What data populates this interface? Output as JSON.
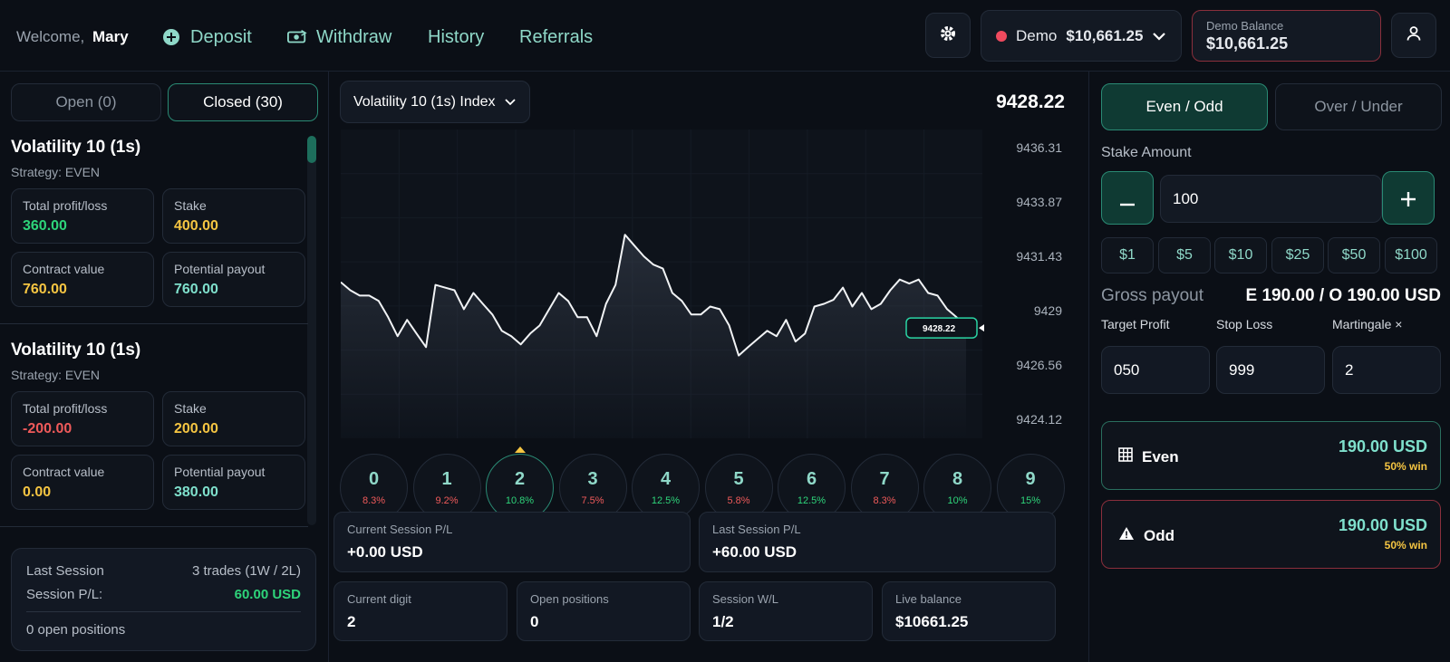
{
  "header": {
    "welcome_label": "Welcome,",
    "user_name": "Mary",
    "nav": [
      "Deposit",
      "Withdraw",
      "History",
      "Referrals"
    ],
    "account_type": "Demo",
    "account_amount": "$10,661.25",
    "demo_balance_label": "Demo Balance",
    "demo_balance_value": "$10,661.25"
  },
  "left": {
    "tabs": [
      "Open (0)",
      "Closed (30)"
    ],
    "positions": [
      {
        "title": "Volatility 10 (1s)",
        "strategy": "Strategy: EVEN",
        "cards": [
          {
            "label": "Total profit/loss",
            "value": "360.00",
            "color": "#2ed47a"
          },
          {
            "label": "Stake",
            "value": "400.00",
            "color": "#f5c542"
          },
          {
            "label": "Contract value",
            "value": "760.00",
            "color": "#f5c542"
          },
          {
            "label": "Potential payout",
            "value": "760.00",
            "color": "#7fe0cc"
          }
        ]
      },
      {
        "title": "Volatility 10 (1s)",
        "strategy": "Strategy: EVEN",
        "cards": [
          {
            "label": "Total profit/loss",
            "value": "-200.00",
            "color": "#ef5a5a"
          },
          {
            "label": "Stake",
            "value": "200.00",
            "color": "#f5c542"
          },
          {
            "label": "Contract value",
            "value": "0.00",
            "color": "#f5c542"
          },
          {
            "label": "Potential payout",
            "value": "380.00",
            "color": "#7fe0cc"
          }
        ]
      }
    ],
    "session": {
      "last_session_label": "Last Session",
      "last_session_value": "3 trades (1W / 2L)",
      "pl_label": "Session P/L:",
      "pl_value": "60.00 USD",
      "open_positions": "0 open positions"
    }
  },
  "center": {
    "symbol": "Volatility 10 (1s) Index",
    "price": "9428.22",
    "chart_data": {
      "type": "line",
      "y_ticks": [
        "9436.31",
        "9433.87",
        "9431.43",
        "9429",
        "9426.56",
        "9424.12"
      ],
      "ylim": [
        9424.12,
        9436.31
      ],
      "current_label": "9428.22",
      "values": [
        9430.27,
        9429.91,
        9429.67,
        9429.67,
        9429.43,
        9428.7,
        9427.85,
        9428.58,
        9427.97,
        9427.36,
        9430.15,
        9430.03,
        9429.91,
        9429.06,
        9429.79,
        9429.3,
        9428.82,
        9428.09,
        9427.85,
        9427.48,
        9427.97,
        9428.33,
        9429.06,
        9429.79,
        9429.43,
        9428.7,
        9428.7,
        9427.85,
        9429.3,
        9430.15,
        9432.4,
        9431.91,
        9431.43,
        9431.06,
        9430.88,
        9429.79,
        9429.43,
        9428.82,
        9428.82,
        9429.18,
        9429.06,
        9428.33,
        9426.98,
        9427.36,
        9427.73,
        9428.09,
        9427.85,
        9428.58,
        9427.61,
        9427.97,
        9429.18,
        9429.3,
        9429.48,
        9430.03,
        9429.18,
        9429.79,
        9429.06,
        9429.3,
        9429.91,
        9430.39,
        9430.21,
        9430.39,
        9429.79,
        9429.67,
        9429.06,
        9428.7,
        9428.22
      ],
      "digits": [
        {
          "n": "0",
          "p": "8.3%",
          "color": "#ef5a5a"
        },
        {
          "n": "1",
          "p": "9.2%",
          "color": "#ef5a5a"
        },
        {
          "n": "2",
          "p": "10.8%",
          "color": "#2ed47a"
        },
        {
          "n": "3",
          "p": "7.5%",
          "color": "#ef5a5a"
        },
        {
          "n": "4",
          "p": "12.5%",
          "color": "#2ed47a"
        },
        {
          "n": "5",
          "p": "5.8%",
          "color": "#ef5a5a"
        },
        {
          "n": "6",
          "p": "12.5%",
          "color": "#2ed47a"
        },
        {
          "n": "7",
          "p": "8.3%",
          "color": "#ef5a5a"
        },
        {
          "n": "8",
          "p": "10%",
          "color": "#2ed47a"
        },
        {
          "n": "9",
          "p": "15%",
          "color": "#2ed47a"
        }
      ]
    },
    "stats": {
      "current_session_label": "Current Session P/L",
      "current_session_value": "+0.00 USD",
      "last_session_label": "Last Session P/L",
      "last_session_value": "+60.00 USD",
      "current_digit_label": "Current digit",
      "current_digit_value": "2",
      "open_positions_label": "Open positions",
      "open_positions_value": "0",
      "session_wl_label": "Session W/L",
      "session_wl_value": "1/2",
      "live_balance_label": "Live balance",
      "live_balance_value": "$10661.25"
    }
  },
  "right": {
    "tabs": [
      "Even / Odd",
      "Over / Under"
    ],
    "stake_label": "Stake Amount",
    "stake_value": "100",
    "chips": [
      "$1",
      "$5",
      "$10",
      "$25",
      "$50",
      "$100"
    ],
    "gross_label": "Gross payout",
    "gross_value": "E 190.00 / O 190.00 USD",
    "fields": [
      {
        "label": "Target Profit",
        "value": "050"
      },
      {
        "label": "Stop Loss",
        "value": "999"
      },
      {
        "label": "Martingale ×",
        "value": "2"
      }
    ],
    "even": {
      "label": "Even",
      "amount": "190.00 USD",
      "win": "50% win"
    },
    "odd": {
      "label": "Odd",
      "amount": "190.00 USD",
      "win": "50% win"
    }
  }
}
